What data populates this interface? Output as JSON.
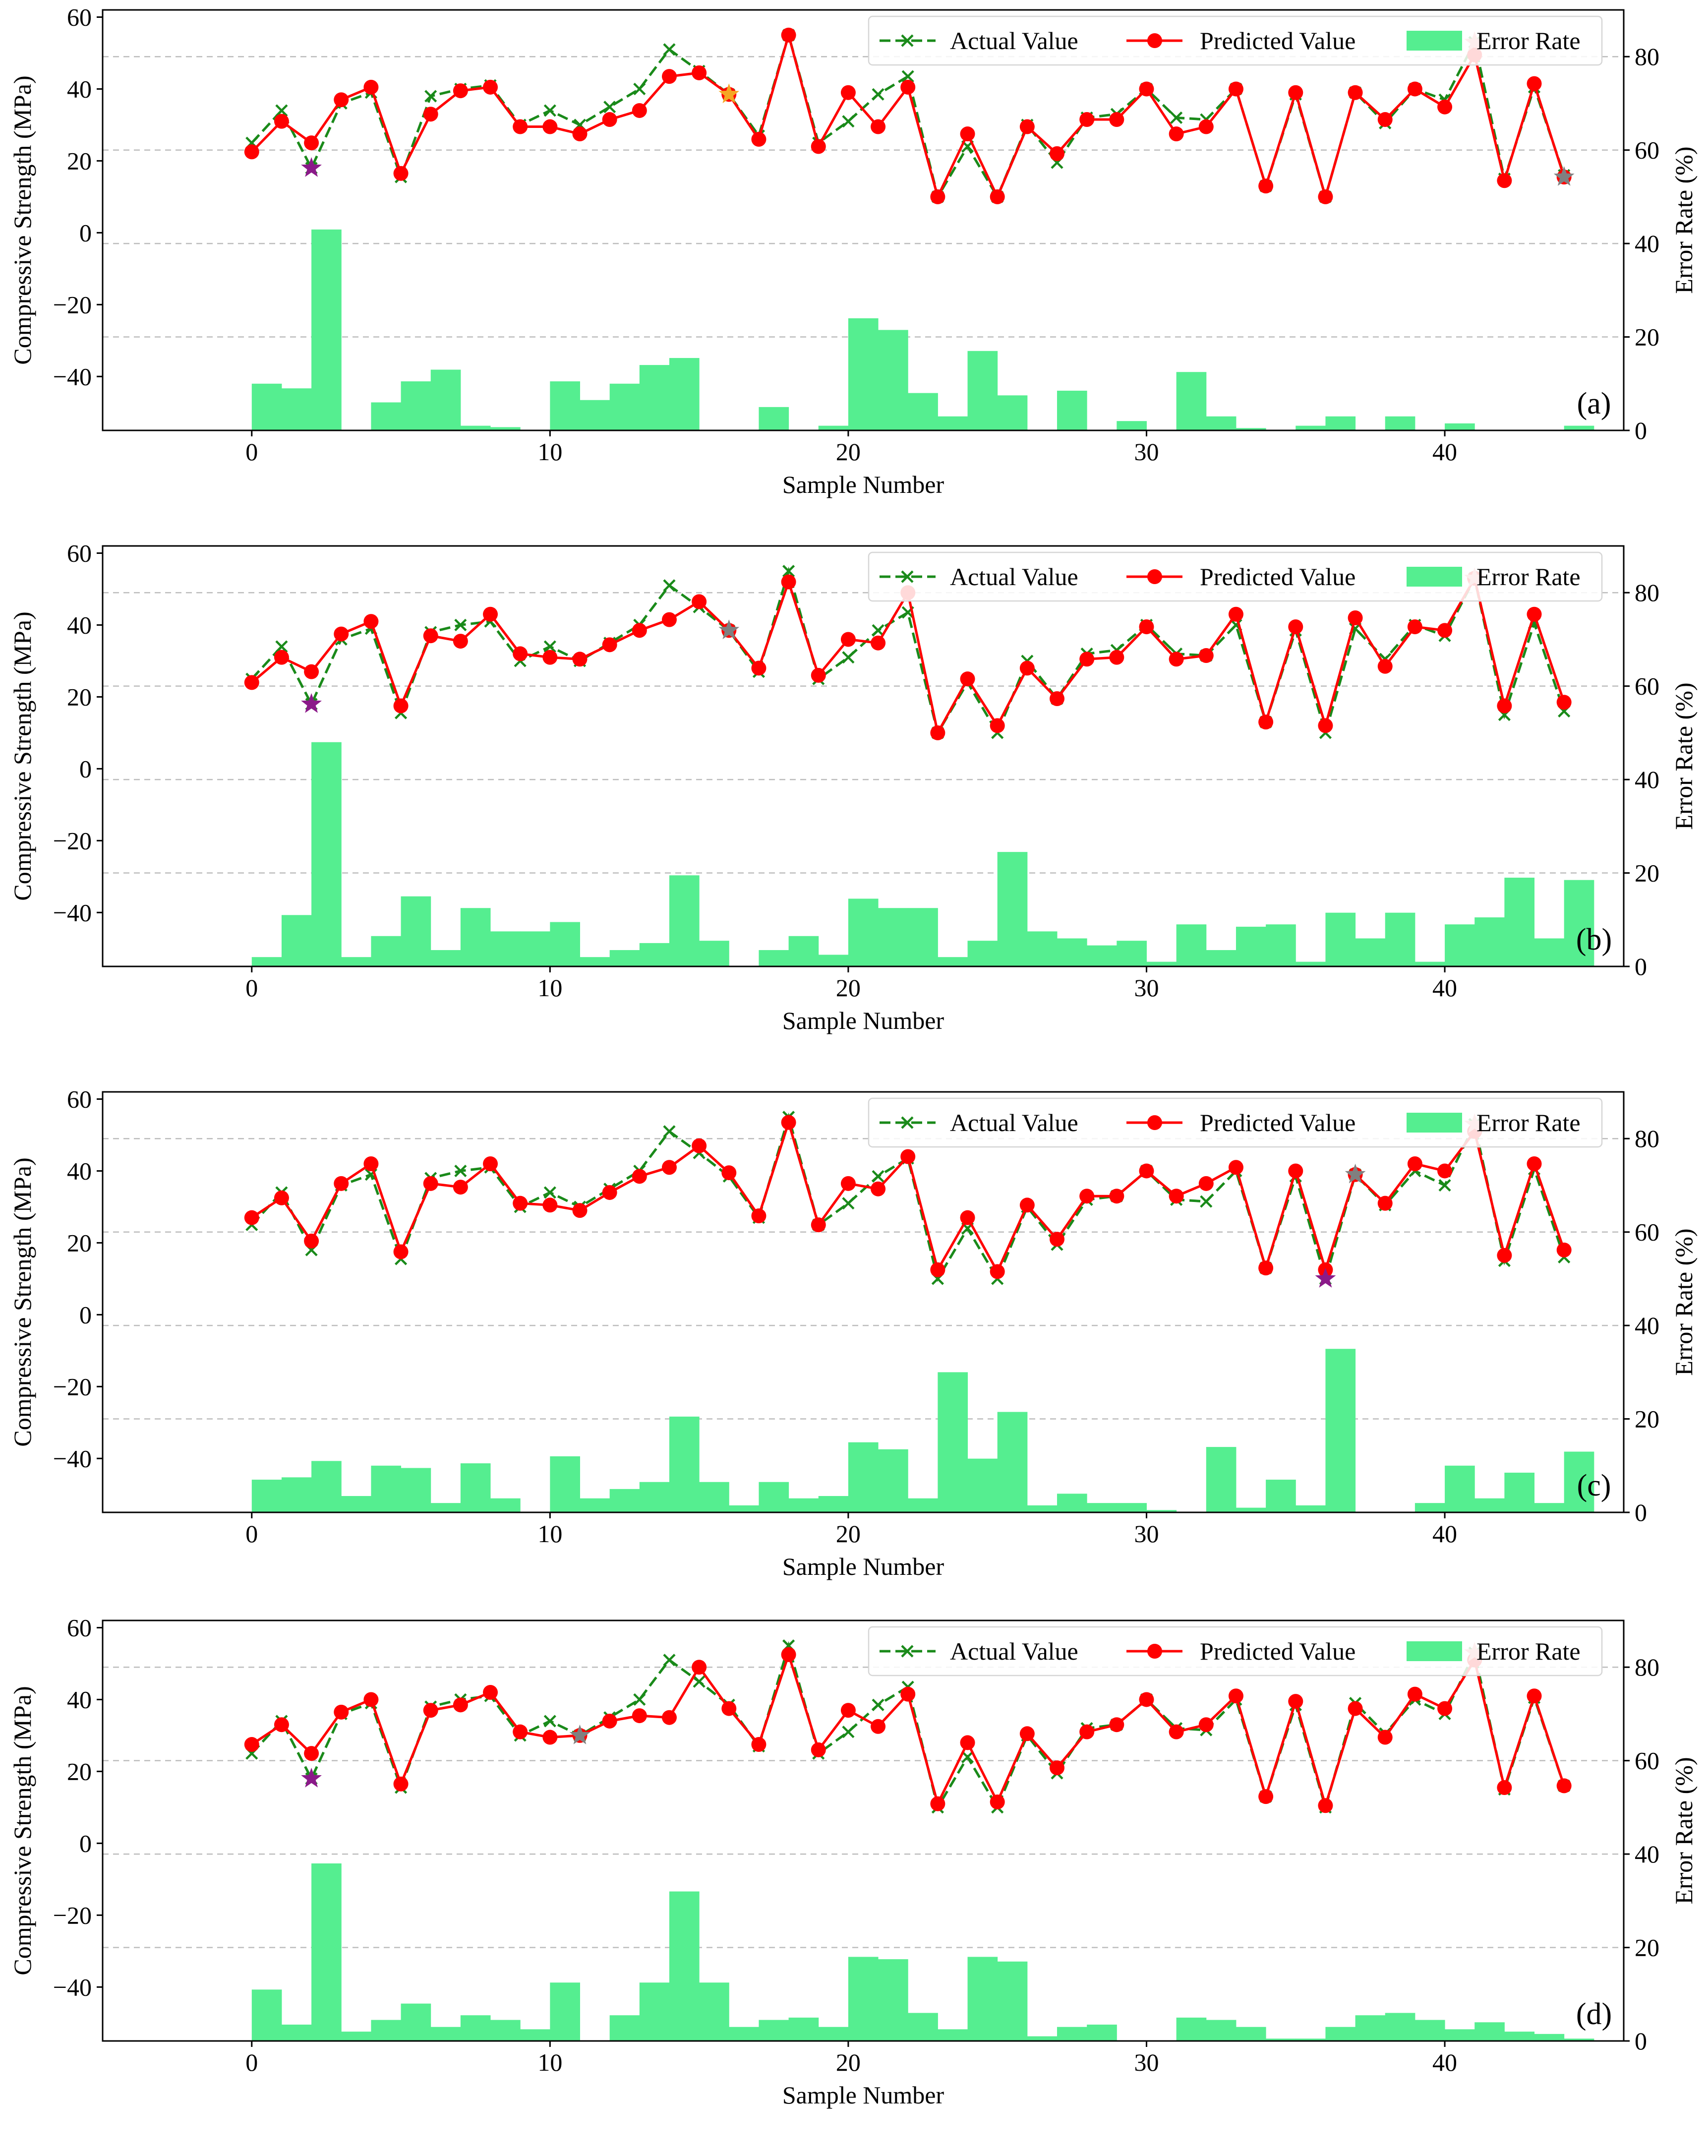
{
  "chart_data": [
    {
      "type": "line+bar",
      "panel_label": "(a)",
      "xlabel": "Sample Number",
      "ylabel": "Compressive Strength (MPa)",
      "ylabel_right": "Error Rate (%)",
      "xlim": [
        -5,
        46
      ],
      "ylim": [
        -55,
        62
      ],
      "ylim_right": [
        0,
        90
      ],
      "xticks": [
        "0",
        "10",
        "20",
        "30",
        "40"
      ],
      "yticks": [
        "−40",
        "−20",
        "0",
        "20",
        "40",
        "60"
      ],
      "yticks_right": [
        "0",
        "20",
        "40",
        "60",
        "80"
      ],
      "legend": [
        "Actual Value",
        "Predicted Value",
        "Error Rate"
      ],
      "series": [
        {
          "name": "Actual Value",
          "values": [
            25,
            34,
            18,
            36,
            39,
            15.5,
            38,
            40,
            41,
            30,
            34,
            30,
            35,
            40,
            51,
            45,
            38.5,
            27,
            55,
            25,
            31,
            38.5,
            43.5,
            10,
            24,
            10,
            30,
            19.5,
            32,
            33,
            40,
            32,
            31.5,
            40,
            13,
            38.5,
            10,
            39,
            30.5,
            40,
            37,
            53,
            15,
            40.5,
            16
          ]
        },
        {
          "name": "Predicted Value",
          "values": [
            22.5,
            31,
            25,
            37,
            40.5,
            16.5,
            33,
            39.5,
            40.5,
            29.5,
            29.5,
            27.5,
            31.5,
            34,
            43.5,
            44.5,
            38.5,
            26,
            55,
            24,
            39,
            29.5,
            40.5,
            10,
            27.5,
            10,
            29.5,
            22,
            31.5,
            31.5,
            40,
            27.5,
            29.5,
            40,
            13,
            39,
            10,
            39,
            31.5,
            40,
            35,
            49.5,
            14.5,
            41.5,
            15.5
          ]
        },
        {
          "name": "Error Rate",
          "values": [
            10,
            9,
            43,
            0,
            6,
            10.5,
            13,
            1,
            0.7,
            0,
            10.5,
            6.5,
            10,
            14,
            15.5,
            0,
            0,
            5,
            0,
            1,
            24,
            21.5,
            8,
            3,
            17,
            7.5,
            0,
            8.5,
            0,
            2,
            0,
            12.5,
            3,
            0.5,
            0,
            1,
            3,
            0,
            3,
            0,
            1.5,
            0,
            0,
            0,
            1
          ]
        }
      ],
      "highlight_markers": [
        {
          "index": 2,
          "value": 18,
          "color": "#8b1a89"
        },
        {
          "index": 16,
          "value": 38.5,
          "color": "#f5a623"
        },
        {
          "index": 41,
          "value": 53,
          "color": "#f08c8c"
        },
        {
          "index": 44,
          "value": 15.5,
          "color": "#808080"
        }
      ]
    },
    {
      "type": "line+bar",
      "panel_label": "(b)",
      "xlabel": "Sample Number",
      "ylabel": "Compressive Strength (MPa)",
      "ylabel_right": "Error Rate (%)",
      "xlim": [
        -5,
        46
      ],
      "ylim": [
        -55,
        62
      ],
      "ylim_right": [
        0,
        90
      ],
      "xticks": [
        "0",
        "10",
        "20",
        "30",
        "40"
      ],
      "yticks": [
        "−40",
        "−20",
        "0",
        "20",
        "40",
        "60"
      ],
      "yticks_right": [
        "0",
        "20",
        "40",
        "60",
        "80"
      ],
      "legend": [
        "Actual Value",
        "Predicted Value",
        "Error Rate"
      ],
      "series": [
        {
          "name": "Actual Value",
          "values": [
            25,
            34,
            18,
            36,
            39,
            15.5,
            38,
            40,
            41,
            30,
            34,
            30,
            35,
            40,
            51,
            45,
            38.5,
            27,
            55,
            25,
            31,
            38.5,
            43.5,
            10,
            24,
            10,
            30,
            19.5,
            32,
            33,
            40,
            32,
            31.5,
            40,
            13,
            38.5,
            10,
            39,
            30.5,
            40,
            37,
            53,
            15,
            40.5,
            16
          ]
        },
        {
          "name": "Predicted Value",
          "values": [
            24,
            31,
            27,
            37.5,
            41,
            17.5,
            37,
            35.5,
            43,
            32,
            31,
            30.5,
            34.5,
            38.5,
            41.5,
            46.5,
            38.5,
            28,
            52,
            26,
            36,
            35,
            49,
            10,
            25,
            12,
            28,
            19.5,
            30.5,
            31,
            39.5,
            30.5,
            31.5,
            43,
            13,
            39.5,
            12,
            42,
            28.5,
            39.5,
            38.5,
            53,
            17.5,
            43,
            18.5
          ]
        },
        {
          "name": "Error Rate",
          "values": [
            2,
            11,
            48,
            2,
            6.5,
            15,
            3.5,
            12.5,
            7.5,
            7.5,
            9.5,
            2,
            3.5,
            5,
            19.5,
            5.5,
            0,
            3.5,
            6.5,
            2.5,
            14.5,
            12.5,
            12.5,
            2,
            5.5,
            24.5,
            7.5,
            6,
            4.5,
            5.5,
            1,
            9,
            3.5,
            8.5,
            9,
            1,
            11.5,
            6,
            11.5,
            1,
            9,
            10.5,
            19,
            6,
            18.5
          ]
        }
      ],
      "highlight_markers": [
        {
          "index": 2,
          "value": 18,
          "color": "#8b1a89"
        },
        {
          "index": 16,
          "value": 38.5,
          "color": "#808080"
        },
        {
          "index": 41,
          "value": 53,
          "color": "#f08c8c"
        }
      ]
    },
    {
      "type": "line+bar",
      "panel_label": "(c)",
      "xlabel": "Sample Number",
      "ylabel": "Compressive Strength (MPa)",
      "ylabel_right": "Error Rate (%)",
      "xlim": [
        -5,
        46
      ],
      "ylim": [
        -55,
        62
      ],
      "ylim_right": [
        0,
        90
      ],
      "xticks": [
        "0",
        "10",
        "20",
        "30",
        "40"
      ],
      "yticks": [
        "−40",
        "−20",
        "0",
        "20",
        "40",
        "60"
      ],
      "yticks_right": [
        "0",
        "20",
        "40",
        "60",
        "80"
      ],
      "legend": [
        "Actual Value",
        "Predicted Value",
        "Error Rate"
      ],
      "series": [
        {
          "name": "Actual Value",
          "values": [
            25,
            34,
            18,
            36,
            39,
            15.5,
            38,
            40,
            41,
            30,
            34,
            30,
            35,
            40,
            51,
            45,
            38.5,
            27,
            55,
            25,
            31,
            38.5,
            43.5,
            10,
            24,
            10,
            30,
            19.5,
            32,
            33,
            40,
            32,
            31.5,
            40,
            13,
            38.5,
            10,
            39,
            30.5,
            40,
            36,
            53,
            15,
            40.5,
            16
          ]
        },
        {
          "name": "Predicted Value",
          "values": [
            27,
            32.5,
            20.5,
            36.5,
            42,
            17.5,
            36.5,
            35.5,
            42,
            31,
            30.5,
            29,
            34,
            38.5,
            41,
            47,
            39.5,
            27.5,
            53.5,
            25,
            36.5,
            35,
            44,
            12.5,
            27,
            12,
            30.5,
            21,
            33,
            33,
            40,
            33,
            36.5,
            41,
            13,
            40,
            12.5,
            39,
            31,
            42,
            40,
            51,
            16.5,
            42,
            18
          ]
        },
        {
          "name": "Error Rate",
          "values": [
            7,
            7.5,
            11,
            3.5,
            10,
            9.5,
            2,
            10.5,
            3,
            0,
            12,
            3,
            5,
            6.5,
            20.5,
            6.5,
            1.5,
            6.5,
            3,
            3.5,
            15,
            13.5,
            3,
            30,
            11.5,
            21.5,
            1.5,
            4,
            2,
            2,
            0.5,
            0,
            14,
            1,
            7,
            1.5,
            35,
            0,
            0,
            2,
            10,
            3,
            8.5,
            2,
            13
          ]
        }
      ],
      "highlight_markers": [
        {
          "index": 36,
          "value": 10,
          "color": "#8b1a89"
        },
        {
          "index": 37,
          "value": 39,
          "color": "#808080"
        },
        {
          "index": 41,
          "value": 53,
          "color": "#f08c8c"
        }
      ]
    },
    {
      "type": "line+bar",
      "panel_label": "(d)",
      "xlabel": "Sample Number",
      "ylabel": "Compressive Strength (MPa)",
      "ylabel_right": "Error Rate (%)",
      "xlim": [
        -5,
        46
      ],
      "ylim": [
        -55,
        62
      ],
      "ylim_right": [
        0,
        90
      ],
      "xticks": [
        "0",
        "10",
        "20",
        "30",
        "40"
      ],
      "yticks": [
        "−40",
        "−20",
        "0",
        "20",
        "40",
        "60"
      ],
      "yticks_right": [
        "0",
        "20",
        "40",
        "60",
        "80"
      ],
      "legend": [
        "Actual Value",
        "Predicted Value",
        "Error Rate"
      ],
      "series": [
        {
          "name": "Actual Value",
          "values": [
            25,
            34,
            18,
            36,
            39,
            15.5,
            38,
            40,
            41,
            30,
            34,
            30,
            35,
            40,
            51,
            45,
            38.5,
            27,
            55,
            25,
            31,
            38.5,
            43.5,
            10,
            24,
            10,
            30,
            19.5,
            32,
            33,
            40,
            32,
            31.5,
            40,
            13,
            38.5,
            10,
            39,
            30.5,
            40,
            36,
            53,
            15,
            40.5,
            16
          ]
        },
        {
          "name": "Predicted Value",
          "values": [
            27.5,
            33,
            25,
            36.5,
            40,
            16.5,
            37,
            38.5,
            42,
            31,
            29.5,
            30,
            34,
            35.5,
            35,
            49,
            37.5,
            27.5,
            52.5,
            26,
            37,
            32.5,
            41.5,
            11,
            28,
            11.5,
            30.5,
            21,
            31,
            33,
            40,
            31,
            33,
            41,
            13,
            39.5,
            10.5,
            37.5,
            29.5,
            41.5,
            37.5,
            51,
            15.5,
            41,
            16
          ]
        },
        {
          "name": "Error Rate",
          "values": [
            11,
            3.5,
            38,
            2,
            4.5,
            8,
            3,
            5.5,
            4.5,
            2.5,
            12.5,
            0,
            5.5,
            12.5,
            32,
            12.5,
            3,
            4.5,
            5,
            3,
            18,
            17.5,
            6,
            2.5,
            18,
            17,
            1,
            3,
            3.5,
            0,
            0,
            5,
            4.5,
            3,
            0.5,
            0.5,
            3,
            5.5,
            6,
            4.5,
            2.5,
            4,
            2,
            1.5,
            0.5
          ]
        }
      ],
      "highlight_markers": [
        {
          "index": 2,
          "value": 18,
          "color": "#8b1a89"
        },
        {
          "index": 11,
          "value": 30,
          "color": "#808080"
        },
        {
          "index": 41,
          "value": 53,
          "color": "#f08c8c"
        }
      ]
    }
  ],
  "colors": {
    "actual": "#1a8a1a",
    "predicted": "#ff0000",
    "error_bar": "#55ee90",
    "grid": "#bdbdbd"
  }
}
